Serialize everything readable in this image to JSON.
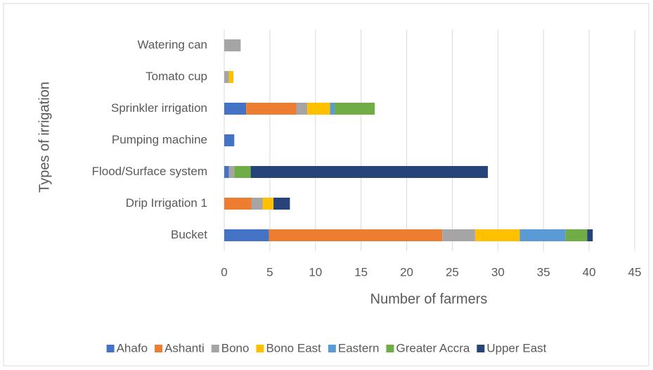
{
  "chart_data": {
    "type": "stacked_bar_horizontal",
    "categories": [
      "Bucket",
      "Drip Irrigation 1",
      "Flood/Surface system",
      "Pumping machine",
      "Sprinkler irrigation",
      "Tomato cup",
      "Watering can"
    ],
    "series": [
      {
        "name": "Ahafo",
        "color": "#4472c4",
        "values": [
          4.9,
          0,
          0.5,
          1.1,
          2.4,
          0,
          0
        ]
      },
      {
        "name": "Ashanti",
        "color": "#ed7d31",
        "values": [
          19,
          3,
          0,
          0,
          5.5,
          0,
          0
        ]
      },
      {
        "name": "Bono",
        "color": "#a5a5a5",
        "values": [
          3.6,
          1.2,
          0.6,
          0,
          1.2,
          0.5,
          1.8
        ]
      },
      {
        "name": "Bono East",
        "color": "#ffc000",
        "values": [
          4.9,
          1.2,
          0,
          0,
          2.5,
          0.5,
          0
        ]
      },
      {
        "name": "Eastern",
        "color": "#5b9bd5",
        "values": [
          5,
          0,
          0,
          0,
          0.5,
          0,
          0
        ]
      },
      {
        "name": "Greater Accra",
        "color": "#70ad47",
        "values": [
          2.4,
          0,
          1.8,
          0,
          4.4,
          0,
          0
        ]
      },
      {
        "name": "Upper East",
        "color": "#264478",
        "values": [
          0.6,
          1.8,
          26,
          0,
          0,
          0,
          0
        ]
      }
    ],
    "xlabel": "Number  of farmers",
    "ylabel": "Types of irrigation",
    "xlim": [
      0,
      45
    ],
    "xticks": [
      0,
      5,
      10,
      15,
      20,
      25,
      30,
      35,
      40,
      45
    ],
    "grid": true,
    "legend": "bottom"
  }
}
